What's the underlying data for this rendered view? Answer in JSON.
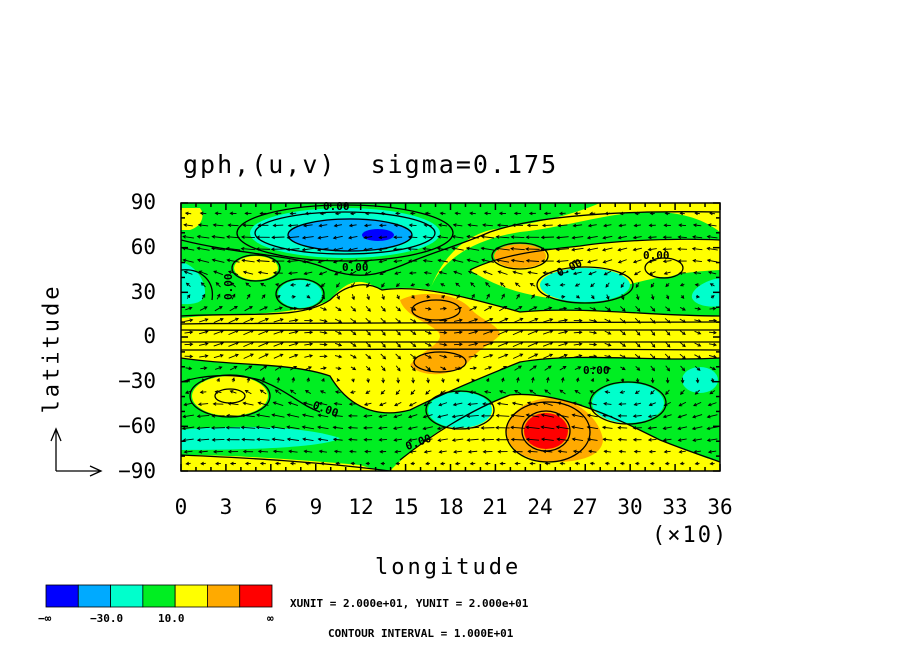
{
  "title": "gph,(u,v)  sigma=0.175",
  "chart_data": {
    "type": "heatmap",
    "title": "gph,(u,v)  sigma=0.175",
    "xlabel": "longitude",
    "ylabel": "latitude",
    "x_multiplier_label": "(×10)",
    "xlim": [
      0,
      36
    ],
    "ylim": [
      -90,
      90
    ],
    "x_ticks": [
      "0",
      "3",
      "6",
      "9",
      "12",
      "15",
      "18",
      "21",
      "24",
      "27",
      "30",
      "33",
      "36"
    ],
    "y_ticks": [
      "90",
      "60",
      "30",
      "0",
      "−30",
      "−60",
      "−90"
    ],
    "contour_labels": [
      "0.00",
      "0.00",
      "0.00",
      "0.00",
      "0.00",
      "0.00",
      "0.00",
      "0.00"
    ],
    "colorbar": {
      "colors": [
        "#0000ff",
        "#00aaff",
        "#00ffcc",
        "#00ee22",
        "#ffff00",
        "#ffaa00",
        "#ff0000"
      ],
      "tick_labels": [
        "−∞",
        "−30.0",
        "10.0",
        "∞"
      ]
    },
    "contour_interval_text": "CONTOUR INTERVAL = 1.000E+01",
    "vector_units_text": "XUNIT = 2.000e+01, YUNIT = 2.000e+01"
  }
}
